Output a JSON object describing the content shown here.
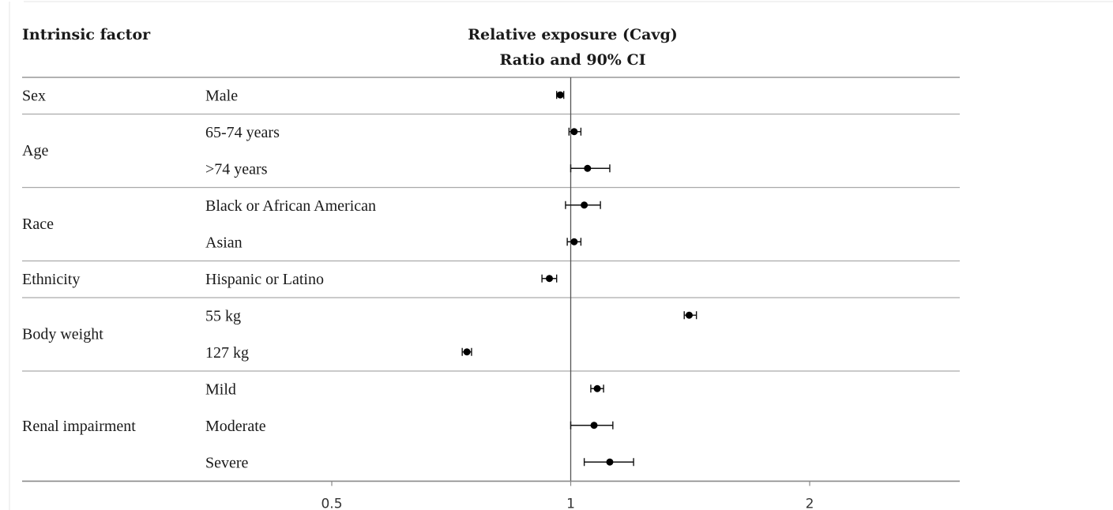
{
  "header": {
    "factor_label": "Intrinsic factor",
    "title_line1": "Relative exposure (Cavg)",
    "title_line2": "Ratio and 90% CI"
  },
  "chart_data": {
    "type": "forest",
    "x_scale": "log",
    "xlim": [
      0.41,
      2.5
    ],
    "reference_line": 1,
    "x_ticks": [
      {
        "value": 0.5,
        "label": "0.5"
      },
      {
        "value": 1,
        "label": "1"
      },
      {
        "value": 2,
        "label": "2"
      }
    ],
    "groups": [
      {
        "factor": "Sex",
        "rows": [
          {
            "label": "Male",
            "ratio": 0.97,
            "lower": 0.96,
            "upper": 0.98
          }
        ]
      },
      {
        "factor": "Age",
        "rows": [
          {
            "label": "65-74 years",
            "ratio": 1.01,
            "lower": 0.995,
            "upper": 1.03
          },
          {
            "label": ">74 years",
            "ratio": 1.05,
            "lower": 1.0,
            "upper": 1.12
          }
        ]
      },
      {
        "factor": "Race",
        "rows": [
          {
            "label": "Black or African American",
            "ratio": 1.04,
            "lower": 0.985,
            "upper": 1.09
          },
          {
            "label": "Asian",
            "ratio": 1.01,
            "lower": 0.99,
            "upper": 1.03
          }
        ]
      },
      {
        "factor": "Ethnicity",
        "rows": [
          {
            "label": "Hispanic or Latino",
            "ratio": 0.94,
            "lower": 0.92,
            "upper": 0.96
          }
        ]
      },
      {
        "factor": "Body weight",
        "rows": [
          {
            "label": "55 kg",
            "ratio": 1.41,
            "lower": 1.39,
            "upper": 1.44
          }
        ]
      },
      {
        "factor": "Body weight",
        "rows": [
          {
            "label": "127 kg",
            "ratio": 0.74,
            "lower": 0.73,
            "upper": 0.75
          }
        ]
      },
      {
        "factor": "Renal impairment",
        "rows": [
          {
            "label": "Mild",
            "ratio": 1.08,
            "lower": 1.06,
            "upper": 1.1
          },
          {
            "label": "Moderate",
            "ratio": 1.07,
            "lower": 1.0,
            "upper": 1.13
          },
          {
            "label": "Severe",
            "ratio": 1.12,
            "lower": 1.04,
            "upper": 1.2
          }
        ]
      }
    ]
  }
}
